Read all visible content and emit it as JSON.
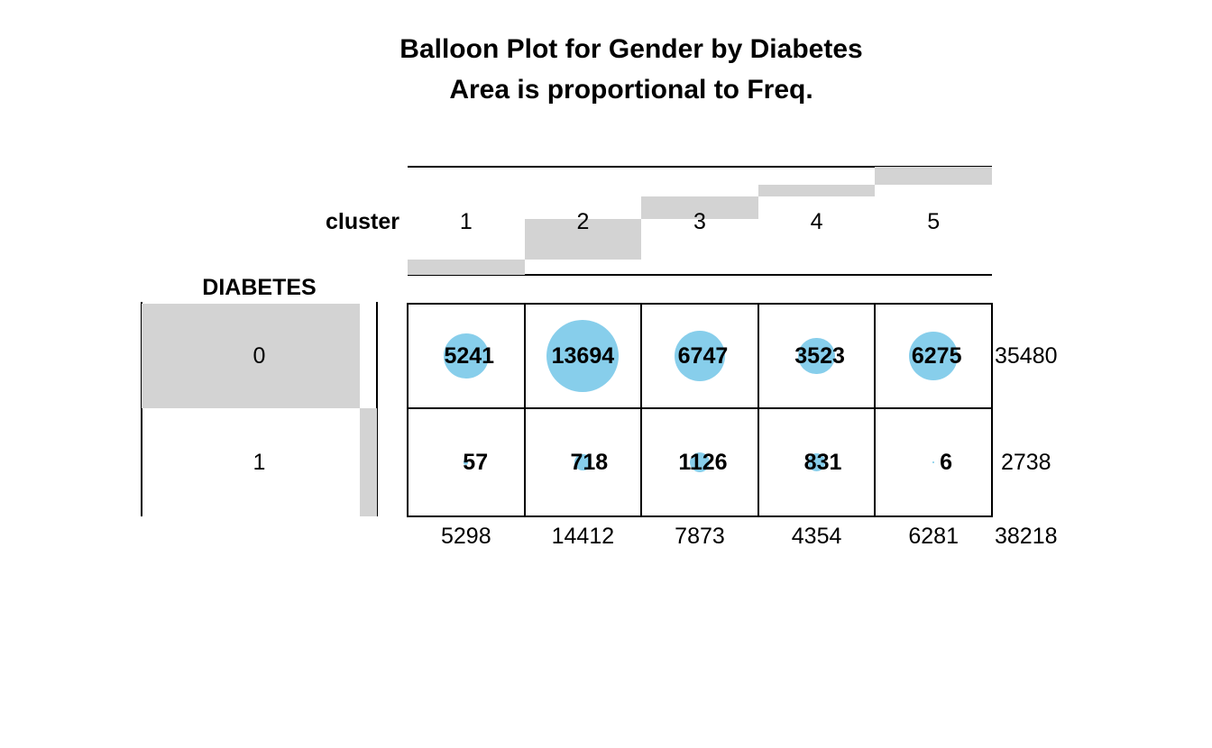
{
  "title": {
    "line1": "Balloon Plot for Gender by Diabetes",
    "line2": "Area is proportional to Freq."
  },
  "colors": {
    "balloon": "#87CEEB",
    "margin_bar": "#D3D3D3",
    "line": "#000000",
    "text": "#000000",
    "background": "#FFFFFF"
  },
  "chart_data": {
    "type": "table",
    "variant": "balloon-plot",
    "title": "Balloon Plot for Gender by Diabetes",
    "subtitle": "Area is proportional to Freq.",
    "x_var": "cluster",
    "y_var": "DIABETES",
    "columns": [
      "1",
      "2",
      "3",
      "4",
      "5"
    ],
    "rows": [
      "0",
      "1"
    ],
    "values": [
      [
        5241,
        13694,
        6747,
        3523,
        6275
      ],
      [
        57,
        718,
        1126,
        831,
        6
      ]
    ],
    "row_totals": [
      35480,
      2738
    ],
    "col_totals": [
      5298,
      14412,
      7873,
      4354,
      6281
    ],
    "grand_total": 38218,
    "max_value": 13694,
    "balloon_note": "circle area proportional to cell frequency",
    "margin_bars_note": "gray bars show marginal shares, stacked cumulatively",
    "legend_position": "none",
    "grid": "on"
  }
}
